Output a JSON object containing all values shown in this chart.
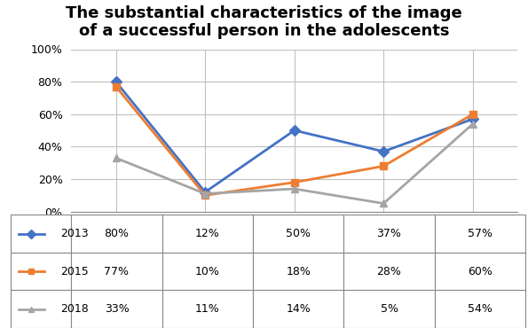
{
  "title": "The substantial characteristics of the image\nof a successful person in the adolescents",
  "title_fontsize": 13,
  "title_fontweight": "bold",
  "x_values": [
    1,
    2,
    3,
    4,
    5
  ],
  "series": [
    {
      "label": "2013",
      "values": [
        80,
        12,
        50,
        37,
        57
      ],
      "color": "#4472C4",
      "marker": "D",
      "markersize": 6,
      "linewidth": 2.0
    },
    {
      "label": "2015",
      "values": [
        77,
        10,
        18,
        28,
        60
      ],
      "color": "#ED7D31",
      "marker": "s",
      "markersize": 6,
      "linewidth": 2.0
    },
    {
      "label": "2018",
      "values": [
        33,
        11,
        14,
        5,
        54
      ],
      "color": "#A5A5A5",
      "marker": "^",
      "markersize": 6,
      "linewidth": 2.0
    }
  ],
  "ylim": [
    0,
    100
  ],
  "yticks": [
    0,
    20,
    40,
    60,
    80,
    100
  ],
  "ytick_labels": [
    "0%",
    "20%",
    "40%",
    "60%",
    "80%",
    "100%"
  ],
  "xticks": [
    1,
    2,
    3,
    4,
    5
  ],
  "table_markers": [
    "D",
    "s",
    "^"
  ],
  "background_color": "#FFFFFF",
  "grid_color": "#C0C0C0",
  "border_color": "#888888"
}
